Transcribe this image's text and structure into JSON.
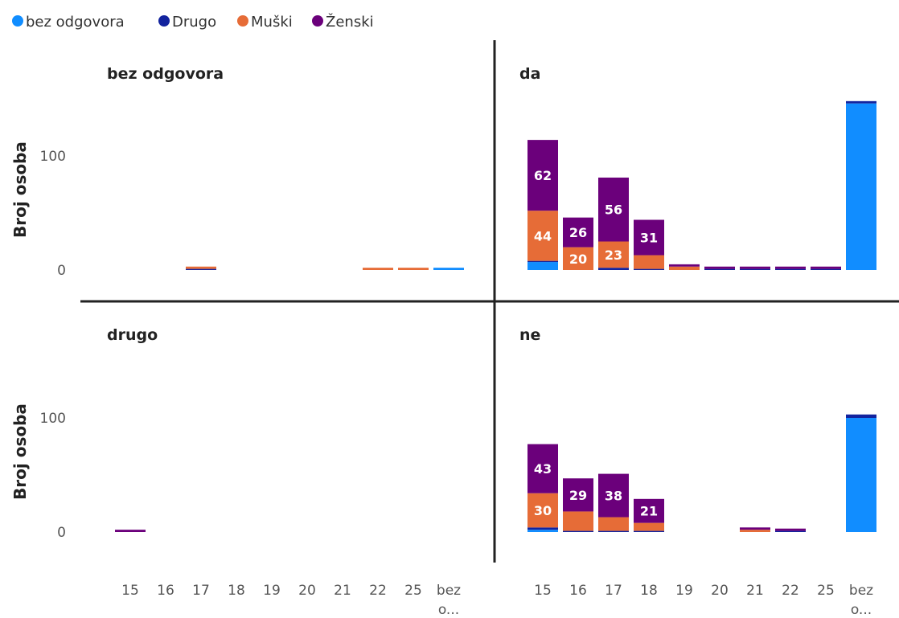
{
  "chart_data": {
    "type": "bar",
    "stacked": true,
    "facets": [
      "bez odgovora",
      "da",
      "drugo",
      "ne"
    ],
    "categories": [
      "15",
      "16",
      "17",
      "18",
      "19",
      "20",
      "21",
      "22",
      "25",
      "bez o..."
    ],
    "ylabel": "Broj osoba",
    "yticks": [
      0,
      100
    ],
    "ylim": [
      0,
      140
    ],
    "grid": false,
    "legend_position": "top-left",
    "series": [
      {
        "name": "bez odgovora",
        "color": "#118DFF"
      },
      {
        "name": "Drugo",
        "color": "#12239E"
      },
      {
        "name": "Muški",
        "color": "#E66C37"
      },
      {
        "name": "Ženski",
        "color": "#6B007B"
      }
    ],
    "panels": [
      {
        "title": "bez odgovora",
        "values": {
          "bez odgovora": [
            0,
            0,
            0,
            0,
            0,
            0,
            0,
            0,
            0,
            2
          ],
          "Drugo": [
            0,
            0,
            1,
            0,
            0,
            0,
            0,
            0,
            0,
            0
          ],
          "Muški": [
            0,
            0,
            2,
            0,
            0,
            0,
            0,
            2,
            2,
            0
          ],
          "Ženski": [
            0,
            0,
            0,
            0,
            0,
            0,
            0,
            0,
            0,
            0
          ]
        },
        "labels": {}
      },
      {
        "title": "da",
        "values": {
          "bez odgovora": [
            7,
            0,
            0,
            0,
            0,
            0,
            0,
            0,
            0,
            146
          ],
          "Drugo": [
            1,
            0,
            2,
            1,
            0,
            1,
            1,
            1,
            1,
            2
          ],
          "Muški": [
            44,
            20,
            23,
            12,
            3,
            0,
            0,
            0,
            0,
            0
          ],
          "Ženski": [
            62,
            26,
            56,
            31,
            2,
            2,
            2,
            2,
            2,
            0
          ]
        },
        "labels": {
          "Muški": [
            44,
            20,
            23,
            null,
            null,
            null,
            null,
            null,
            null,
            null
          ],
          "Ženski": [
            62,
            26,
            56,
            31,
            null,
            null,
            null,
            null,
            null,
            null
          ]
        }
      },
      {
        "title": "drugo",
        "values": {
          "bez odgovora": [
            0,
            0,
            0,
            0,
            0,
            0,
            0,
            0,
            0,
            0
          ],
          "Drugo": [
            0,
            0,
            0,
            0,
            0,
            0,
            0,
            0,
            0,
            0
          ],
          "Muški": [
            0,
            0,
            0,
            0,
            0,
            0,
            0,
            0,
            0,
            0
          ],
          "Ženski": [
            2,
            0,
            0,
            0,
            0,
            0,
            0,
            0,
            0,
            0
          ]
        },
        "labels": {}
      },
      {
        "title": "ne",
        "values": {
          "bez odgovora": [
            2,
            0,
            0,
            0,
            0,
            0,
            0,
            0,
            0,
            100
          ],
          "Drugo": [
            2,
            1,
            1,
            1,
            0,
            0,
            0,
            1,
            0,
            3
          ],
          "Muški": [
            30,
            17,
            12,
            7,
            0,
            0,
            2,
            0,
            0,
            0
          ],
          "Ženski": [
            43,
            29,
            38,
            21,
            0,
            0,
            2,
            2,
            0,
            0
          ]
        },
        "labels": {
          "Muški": [
            30,
            null,
            null,
            null,
            null,
            null,
            null,
            null,
            null,
            null
          ],
          "Ženski": [
            43,
            29,
            38,
            21,
            null,
            null,
            null,
            null,
            null,
            null
          ]
        }
      }
    ]
  }
}
